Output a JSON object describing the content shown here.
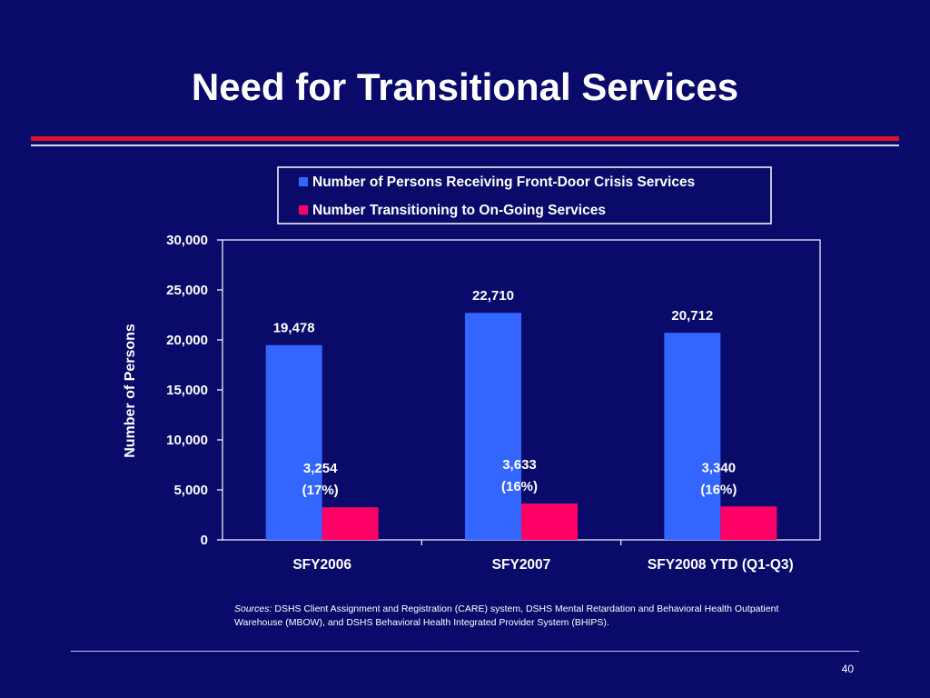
{
  "slide": {
    "title": "Need for Transitional Services",
    "sources_label": "Sources:",
    "sources_text": " DSHS Client Assignment and Registration (CARE) system, DSHS Mental Retardation and Behavioral Health Outpatient Warehouse (MBOW), and DSHS Behavioral Health Integrated Provider System (BHIPS).",
    "page_number": "40"
  },
  "colors": {
    "background": "#0a0a6b",
    "series_1": "#3366ff",
    "series_2": "#ff0066",
    "accent_rule": "#d8122a"
  },
  "chart_data": {
    "type": "bar",
    "title": "",
    "xlabel": "",
    "ylabel": "Number of Persons",
    "ylim": [
      0,
      30000
    ],
    "yticks": [
      0,
      5000,
      10000,
      15000,
      20000,
      25000,
      30000
    ],
    "ytick_labels": [
      "0",
      "5,000",
      "10,000",
      "15,000",
      "20,000",
      "25,000",
      "30,000"
    ],
    "categories": [
      "SFY2006",
      "SFY2007",
      "SFY2008 YTD (Q1-Q3)"
    ],
    "series": [
      {
        "name": "Number of Persons Receiving Front-Door Crisis Services",
        "values": [
          19478,
          22710,
          20712
        ],
        "labels": [
          "19,478",
          "22,710",
          "20,712"
        ],
        "color": "#3366ff"
      },
      {
        "name": "Number Transitioning to On-Going Services",
        "values": [
          3254,
          3633,
          3340
        ],
        "labels": [
          "3,254",
          "3,633",
          "3,340"
        ],
        "percent_labels": [
          "(17%)",
          "(16%)",
          "(16%)"
        ],
        "color": "#ff0066"
      }
    ],
    "legend_position": "top",
    "grid": false
  }
}
